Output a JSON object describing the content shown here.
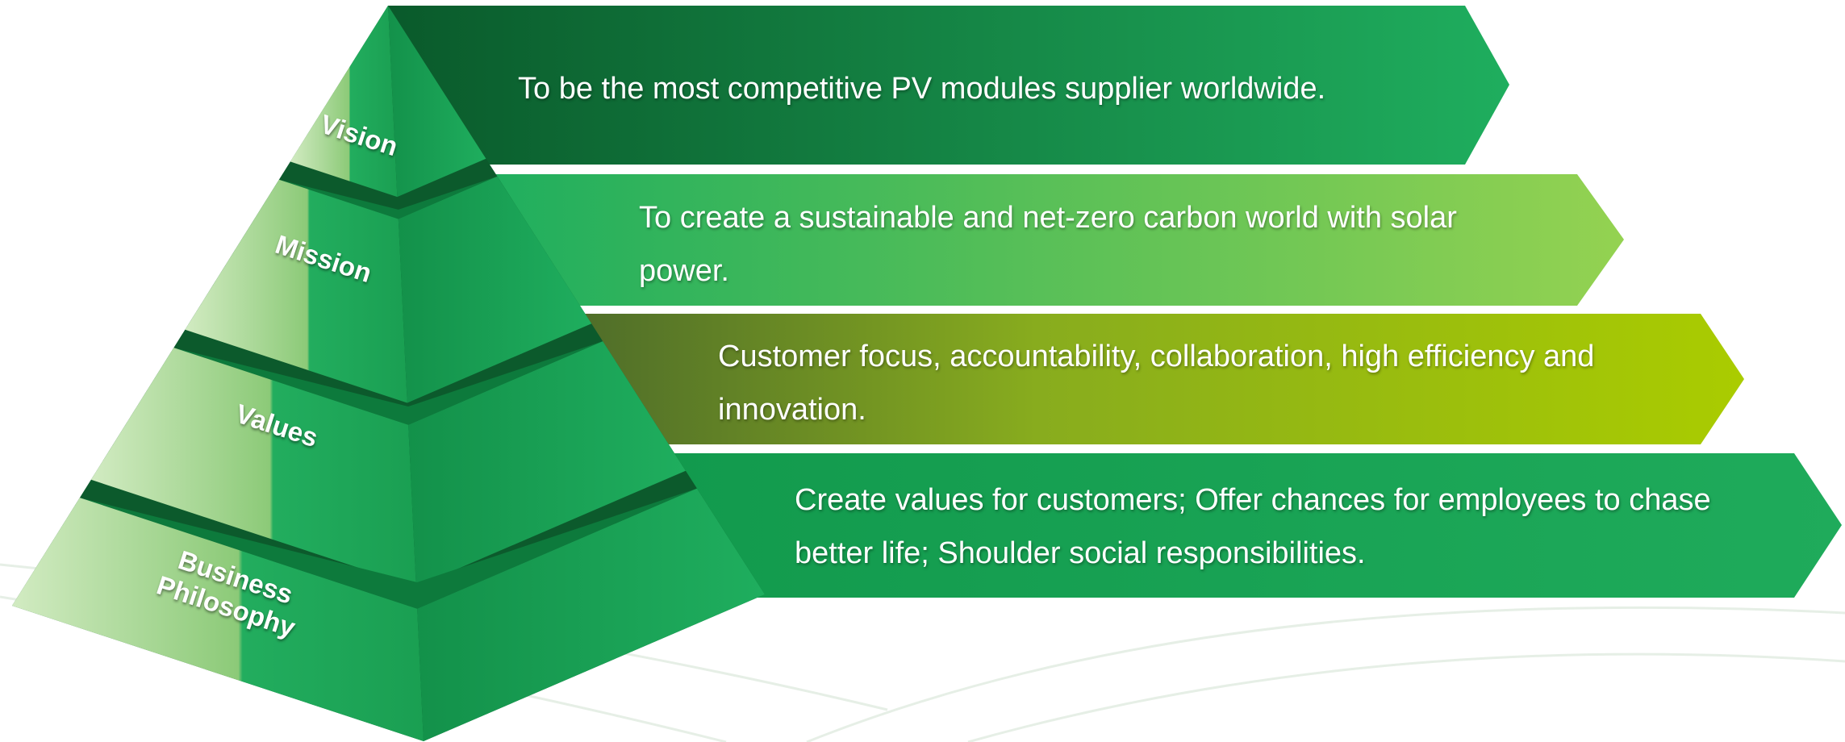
{
  "tiers": [
    {
      "label": "Vision",
      "statement": "To be the most competitive PV modules supplier worldwide."
    },
    {
      "label": "Mission",
      "statement": "To create a sustainable and net-zero carbon world with solar power."
    },
    {
      "label": "Values",
      "statement": "Customer focus, accountability, collaboration, high efficiency and innovation."
    },
    {
      "label": "Business Philosophy",
      "statement": "Create values for customers; Offer chances for employees to chase better life; Shoulder social responsibilities."
    }
  ]
}
